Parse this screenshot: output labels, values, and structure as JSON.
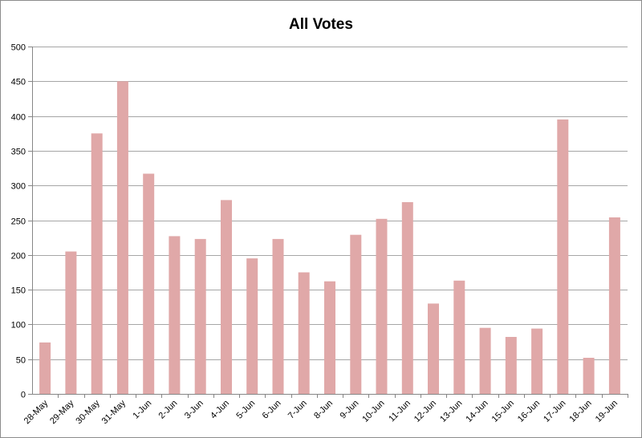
{
  "chart_data": {
    "type": "bar",
    "title": "All Votes",
    "xlabel": "",
    "ylabel": "",
    "categories": [
      "28-May",
      "29-May",
      "30-May",
      "31-May",
      "1-Jun",
      "2-Jun",
      "3-Jun",
      "4-Jun",
      "5-Jun",
      "6-Jun",
      "7-Jun",
      "8-Jun",
      "9-Jun",
      "10-Jun",
      "11-Jun",
      "12-Jun",
      "13-Jun",
      "14-Jun",
      "15-Jun",
      "16-Jun",
      "17-Jun",
      "18-Jun",
      "19-Jun"
    ],
    "values": [
      74,
      205,
      375,
      450,
      317,
      227,
      223,
      279,
      195,
      223,
      175,
      162,
      229,
      252,
      276,
      130,
      163,
      95,
      82,
      94,
      395,
      52,
      254
    ],
    "ylim": [
      0,
      500
    ],
    "yticks": [
      0,
      50,
      100,
      150,
      200,
      250,
      300,
      350,
      400,
      450,
      500
    ],
    "grid": true,
    "legend": "none",
    "colors": {
      "bar": "#e0a8a8",
      "grid": "#a6a6a6",
      "axis": "#868686"
    }
  }
}
